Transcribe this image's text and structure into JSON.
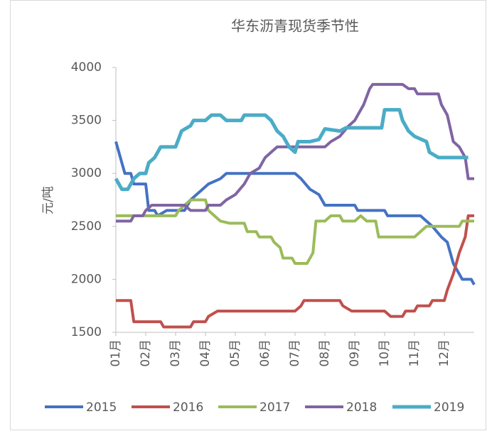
{
  "chart_data": {
    "type": "line",
    "title": "华东沥青现货季节性",
    "y_label": "元/吨",
    "xlim": [
      1,
      13
    ],
    "ylim": [
      1500,
      4000
    ],
    "yticks": [
      1500,
      2000,
      2500,
      3000,
      3500,
      4000
    ],
    "xticks": [
      {
        "value": 1,
        "label": "01月"
      },
      {
        "value": 2,
        "label": "02月"
      },
      {
        "value": 3,
        "label": "03月"
      },
      {
        "value": 4,
        "label": "04月"
      },
      {
        "value": 5,
        "label": "05月"
      },
      {
        "value": 6,
        "label": "06月"
      },
      {
        "value": 7,
        "label": "07月"
      },
      {
        "value": 8,
        "label": "08月"
      },
      {
        "value": 9,
        "label": "09月"
      },
      {
        "value": 10,
        "label": "10月"
      },
      {
        "value": 11,
        "label": "11月"
      },
      {
        "value": 12,
        "label": "12月"
      }
    ],
    "grid": false,
    "legend": "bottom",
    "series": [
      {
        "name": "2015",
        "color": "#4472c4",
        "x": [
          1.0,
          1.1,
          1.3,
          1.5,
          1.6,
          2.0,
          2.1,
          2.3,
          2.4,
          2.7,
          3.3,
          3.5,
          3.9,
          4.1,
          4.5,
          4.7,
          7.0,
          7.2,
          7.5,
          7.8,
          8.0,
          9.0,
          9.1,
          10.0,
          10.1,
          11.2,
          11.4,
          11.6,
          11.9,
          12.1,
          12.3,
          12.6,
          12.9,
          13.0
        ],
        "values": [
          3300,
          3200,
          3000,
          3000,
          2900,
          2900,
          2650,
          2650,
          2600,
          2650,
          2650,
          2750,
          2850,
          2900,
          2950,
          3000,
          3000,
          2950,
          2850,
          2800,
          2700,
          2700,
          2650,
          2650,
          2600,
          2600,
          2550,
          2500,
          2400,
          2350,
          2150,
          2000,
          2000,
          1950
        ]
      },
      {
        "name": "2016",
        "color": "#c0504d",
        "x": [
          1.0,
          1.5,
          1.6,
          2.5,
          2.6,
          3.5,
          3.6,
          4.0,
          4.1,
          4.4,
          7.0,
          7.2,
          7.3,
          8.5,
          8.6,
          8.9,
          10.0,
          10.2,
          10.6,
          10.7,
          11.0,
          11.1,
          11.5,
          11.6,
          12.0,
          12.1,
          12.3,
          12.5,
          12.7,
          12.8,
          13.0
        ],
        "values": [
          1800,
          1800,
          1600,
          1600,
          1550,
          1550,
          1600,
          1600,
          1650,
          1700,
          1700,
          1750,
          1800,
          1800,
          1750,
          1700,
          1700,
          1650,
          1650,
          1700,
          1700,
          1750,
          1750,
          1800,
          1800,
          1900,
          2050,
          2250,
          2400,
          2600,
          2600
        ]
      },
      {
        "name": "2017",
        "color": "#9bbb59",
        "x": [
          1.0,
          3.0,
          3.1,
          3.3,
          3.5,
          4.0,
          4.1,
          4.3,
          4.5,
          4.8,
          5.3,
          5.4,
          5.7,
          5.8,
          6.2,
          6.3,
          6.5,
          6.6,
          6.9,
          7.0,
          7.4,
          7.5,
          7.6,
          7.7,
          8.0,
          8.2,
          8.5,
          8.6,
          9.0,
          9.2,
          9.4,
          9.7,
          9.8,
          11.0,
          11.2,
          11.4,
          12.5,
          12.6,
          13.0
        ],
        "values": [
          2600,
          2600,
          2650,
          2700,
          2750,
          2750,
          2650,
          2600,
          2550,
          2530,
          2530,
          2450,
          2450,
          2400,
          2400,
          2350,
          2300,
          2200,
          2200,
          2150,
          2150,
          2200,
          2250,
          2550,
          2550,
          2600,
          2600,
          2550,
          2550,
          2600,
          2550,
          2550,
          2400,
          2400,
          2450,
          2500,
          2500,
          2550,
          2550
        ]
      },
      {
        "name": "2018",
        "color": "#8064a2",
        "x": [
          1.0,
          1.5,
          1.6,
          1.9,
          2.0,
          2.2,
          3.3,
          3.5,
          4.0,
          4.1,
          4.5,
          4.7,
          5.0,
          5.3,
          5.5,
          5.8,
          6.0,
          6.2,
          6.4,
          8.0,
          8.2,
          8.5,
          8.8,
          9.0,
          9.3,
          9.5,
          9.6,
          10.6,
          10.8,
          11.0,
          11.1,
          11.8,
          11.9,
          12.1,
          12.3,
          12.5,
          12.7,
          12.8,
          13.0
        ],
        "values": [
          2550,
          2550,
          2600,
          2600,
          2650,
          2700,
          2700,
          2650,
          2650,
          2700,
          2700,
          2750,
          2800,
          2900,
          3000,
          3050,
          3150,
          3200,
          3250,
          3250,
          3300,
          3350,
          3450,
          3500,
          3650,
          3800,
          3840,
          3840,
          3800,
          3800,
          3750,
          3750,
          3650,
          3550,
          3300,
          3250,
          3150,
          2950,
          2950
        ]
      },
      {
        "name": "2019",
        "color": "#4bacc6",
        "x": [
          1.0,
          1.2,
          1.4,
          1.6,
          1.8,
          2.0,
          2.1,
          2.3,
          2.5,
          3.0,
          3.2,
          3.5,
          3.6,
          4.0,
          4.2,
          4.5,
          4.7,
          5.2,
          5.3,
          6.0,
          6.2,
          6.4,
          6.6,
          6.8,
          7.0,
          7.1,
          7.5,
          7.8,
          8.0,
          8.5,
          8.7,
          9.9,
          10.0,
          10.5,
          10.6,
          10.8,
          11.0,
          11.4,
          11.5,
          11.8,
          12.8
        ],
        "values": [
          2950,
          2850,
          2850,
          2950,
          3000,
          3000,
          3100,
          3150,
          3250,
          3250,
          3400,
          3450,
          3500,
          3500,
          3550,
          3550,
          3500,
          3500,
          3550,
          3550,
          3500,
          3400,
          3350,
          3250,
          3200,
          3300,
          3300,
          3320,
          3420,
          3400,
          3430,
          3430,
          3600,
          3600,
          3500,
          3400,
          3350,
          3300,
          3200,
          3150,
          3150
        ]
      }
    ]
  }
}
